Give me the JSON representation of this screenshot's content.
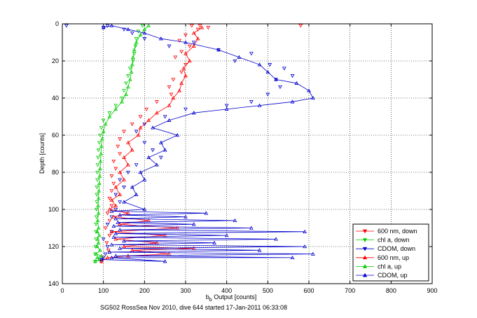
{
  "chart_data": {
    "type": "scatter",
    "xlabel_base": "b",
    "xlabel_sub": "b",
    "xlabel_rest": " Output [counts]",
    "ylabel": "Depth [counts]",
    "xlim": [
      0,
      900
    ],
    "ylim": [
      0,
      140
    ],
    "y_reversed": true,
    "xticks": [
      0,
      100,
      200,
      300,
      400,
      500,
      600,
      700,
      800,
      900
    ],
    "yticks": [
      0,
      20,
      40,
      60,
      80,
      100,
      120,
      140
    ],
    "grid": "dotted",
    "legend_position": "bottom-right",
    "caption": "SG502 RossSea Nov 2010, dive 644 started 17-Jan-2011 06:33:08",
    "series": [
      {
        "name": "600 nm, down",
        "color": "#ff0000",
        "marker": "triangle-down",
        "line": false,
        "points": [
          [
            315,
            1
          ],
          [
            335,
            1
          ],
          [
            355,
            2
          ],
          [
            580,
            1
          ],
          [
            330,
            3
          ],
          [
            300,
            6
          ],
          [
            285,
            9
          ],
          [
            310,
            12
          ],
          [
            290,
            15
          ],
          [
            275,
            18
          ],
          [
            300,
            22
          ],
          [
            290,
            26
          ],
          [
            270,
            30
          ],
          [
            260,
            34
          ],
          [
            265,
            38
          ],
          [
            230,
            42
          ],
          [
            205,
            46
          ],
          [
            190,
            50
          ],
          [
            170,
            54
          ],
          [
            150,
            58
          ],
          [
            140,
            62
          ],
          [
            135,
            66
          ],
          [
            140,
            70
          ],
          [
            125,
            74
          ],
          [
            130,
            78
          ],
          [
            120,
            82
          ],
          [
            125,
            86
          ],
          [
            120,
            90
          ],
          [
            115,
            94
          ],
          [
            120,
            98
          ],
          [
            110,
            102
          ],
          [
            115,
            106
          ],
          [
            105,
            110
          ],
          [
            115,
            114
          ],
          [
            108,
            118
          ],
          [
            112,
            122
          ],
          [
            100,
            126
          ],
          [
            95,
            128
          ]
        ]
      },
      {
        "name": "chl a, down",
        "color": "#00cc00",
        "marker": "triangle-down",
        "line": false,
        "points": [
          [
            195,
            1
          ],
          [
            185,
            4
          ],
          [
            180,
            8
          ],
          [
            178,
            12
          ],
          [
            175,
            16
          ],
          [
            172,
            20
          ],
          [
            165,
            24
          ],
          [
            160,
            28
          ],
          [
            155,
            32
          ],
          [
            150,
            36
          ],
          [
            145,
            40
          ],
          [
            130,
            44
          ],
          [
            115,
            48
          ],
          [
            100,
            52
          ],
          [
            95,
            56
          ],
          [
            92,
            60
          ],
          [
            90,
            64
          ],
          [
            88,
            68
          ],
          [
            87,
            72
          ],
          [
            86,
            76
          ],
          [
            85,
            80
          ],
          [
            85,
            84
          ],
          [
            84,
            88
          ],
          [
            84,
            92
          ],
          [
            84,
            96
          ],
          [
            83,
            100
          ],
          [
            83,
            104
          ],
          [
            82,
            108
          ],
          [
            82,
            112
          ],
          [
            82,
            116
          ],
          [
            81,
            120
          ],
          [
            80,
            124
          ],
          [
            80,
            128
          ]
        ]
      },
      {
        "name": "CDOM, down",
        "color": "#0000cc",
        "marker": "triangle-down",
        "line": false,
        "points": [
          [
            10,
            1
          ],
          [
            100,
            2
          ],
          [
            110,
            1
          ],
          [
            150,
            3
          ],
          [
            170,
            5
          ],
          [
            200,
            8
          ],
          [
            260,
            12
          ],
          [
            320,
            10
          ],
          [
            380,
            14
          ],
          [
            460,
            16
          ],
          [
            420,
            20
          ],
          [
            505,
            22
          ],
          [
            540,
            24
          ],
          [
            560,
            28
          ],
          [
            520,
            30
          ],
          [
            530,
            34
          ],
          [
            500,
            38
          ],
          [
            460,
            42
          ],
          [
            400,
            44
          ],
          [
            300,
            46
          ],
          [
            250,
            50
          ],
          [
            200,
            54
          ],
          [
            180,
            58
          ],
          [
            200,
            64
          ],
          [
            220,
            68
          ],
          [
            240,
            72
          ],
          [
            180,
            76
          ],
          [
            160,
            80
          ],
          [
            140,
            84
          ],
          [
            150,
            88
          ],
          [
            130,
            92
          ],
          [
            140,
            96
          ],
          [
            130,
            100
          ],
          [
            120,
            104
          ],
          [
            110,
            108
          ],
          [
            120,
            112
          ],
          [
            100,
            116
          ],
          [
            110,
            120
          ],
          [
            105,
            124
          ],
          [
            100,
            126
          ],
          [
            95,
            127
          ]
        ]
      },
      {
        "name": "600 nm, up",
        "color": "#ff0000",
        "marker": "triangle-up",
        "line": true,
        "points": [
          [
            95,
            128
          ],
          [
            110,
            126
          ],
          [
            160,
            125
          ],
          [
            260,
            124
          ],
          [
            170,
            122
          ],
          [
            320,
            121
          ],
          [
            150,
            120
          ],
          [
            230,
            118
          ],
          [
            130,
            116
          ],
          [
            250,
            114
          ],
          [
            120,
            112
          ],
          [
            280,
            110
          ],
          [
            140,
            108
          ],
          [
            210,
            106
          ],
          [
            125,
            104
          ],
          [
            160,
            102
          ],
          [
            115,
            100
          ],
          [
            130,
            98
          ],
          [
            120,
            95
          ],
          [
            140,
            92
          ],
          [
            130,
            88
          ],
          [
            150,
            84
          ],
          [
            140,
            80
          ],
          [
            160,
            76
          ],
          [
            150,
            72
          ],
          [
            170,
            68
          ],
          [
            160,
            64
          ],
          [
            185,
            60
          ],
          [
            190,
            56
          ],
          [
            210,
            52
          ],
          [
            230,
            48
          ],
          [
            260,
            44
          ],
          [
            270,
            40
          ],
          [
            285,
            36
          ],
          [
            290,
            32
          ],
          [
            300,
            28
          ],
          [
            295,
            24
          ],
          [
            310,
            20
          ],
          [
            300,
            16
          ],
          [
            320,
            12
          ],
          [
            330,
            8
          ],
          [
            320,
            5
          ],
          [
            340,
            2
          ]
        ]
      },
      {
        "name": "chl a, up",
        "color": "#00cc00",
        "marker": "triangle-up",
        "line": true,
        "points": [
          [
            80,
            128
          ],
          [
            90,
            127
          ],
          [
            85,
            126
          ],
          [
            95,
            125
          ],
          [
            82,
            124
          ],
          [
            92,
            122
          ],
          [
            84,
            120
          ],
          [
            88,
            118
          ],
          [
            86,
            116
          ],
          [
            90,
            114
          ],
          [
            85,
            112
          ],
          [
            88,
            110
          ],
          [
            86,
            106
          ],
          [
            88,
            102
          ],
          [
            87,
            98
          ],
          [
            88,
            94
          ],
          [
            89,
            90
          ],
          [
            90,
            86
          ],
          [
            91,
            82
          ],
          [
            92,
            78
          ],
          [
            93,
            74
          ],
          [
            94,
            70
          ],
          [
            95,
            66
          ],
          [
            97,
            62
          ],
          [
            100,
            58
          ],
          [
            105,
            54
          ],
          [
            115,
            50
          ],
          [
            130,
            46
          ],
          [
            145,
            42
          ],
          [
            155,
            38
          ],
          [
            160,
            34
          ],
          [
            165,
            30
          ],
          [
            168,
            26
          ],
          [
            170,
            22
          ],
          [
            172,
            18
          ],
          [
            175,
            14
          ],
          [
            180,
            10
          ],
          [
            190,
            6
          ],
          [
            200,
            3
          ],
          [
            210,
            1
          ]
        ]
      },
      {
        "name": "CDOM, up",
        "color": "#0000cc",
        "marker": "triangle-up",
        "line": true,
        "points": [
          [
            95,
            127
          ],
          [
            250,
            128
          ],
          [
            120,
            126
          ],
          [
            560,
            126
          ],
          [
            130,
            125
          ],
          [
            610,
            124
          ],
          [
            115,
            123
          ],
          [
            480,
            122
          ],
          [
            140,
            121
          ],
          [
            590,
            120
          ],
          [
            120,
            119
          ],
          [
            370,
            118
          ],
          [
            150,
            117
          ],
          [
            520,
            116
          ],
          [
            125,
            115
          ],
          [
            400,
            114
          ],
          [
            130,
            113
          ],
          [
            590,
            112
          ],
          [
            140,
            111
          ],
          [
            460,
            110
          ],
          [
            125,
            109
          ],
          [
            320,
            108
          ],
          [
            135,
            107
          ],
          [
            420,
            106
          ],
          [
            130,
            105
          ],
          [
            300,
            104
          ],
          [
            140,
            103
          ],
          [
            350,
            102
          ],
          [
            120,
            101
          ],
          [
            200,
            100
          ],
          [
            150,
            96
          ],
          [
            180,
            92
          ],
          [
            170,
            88
          ],
          [
            200,
            84
          ],
          [
            190,
            80
          ],
          [
            230,
            76
          ],
          [
            210,
            72
          ],
          [
            250,
            68
          ],
          [
            240,
            64
          ],
          [
            280,
            60
          ],
          [
            220,
            56
          ],
          [
            260,
            52
          ],
          [
            320,
            48
          ],
          [
            400,
            46
          ],
          [
            480,
            44
          ],
          [
            560,
            42
          ],
          [
            610,
            40
          ],
          [
            600,
            36
          ],
          [
            570,
            32
          ],
          [
            520,
            30
          ],
          [
            500,
            26
          ],
          [
            480,
            22
          ],
          [
            430,
            18
          ],
          [
            380,
            14
          ],
          [
            300,
            10
          ],
          [
            240,
            8
          ],
          [
            200,
            5
          ],
          [
            160,
            3
          ],
          [
            120,
            1
          ],
          [
            100,
            2
          ]
        ]
      }
    ]
  }
}
